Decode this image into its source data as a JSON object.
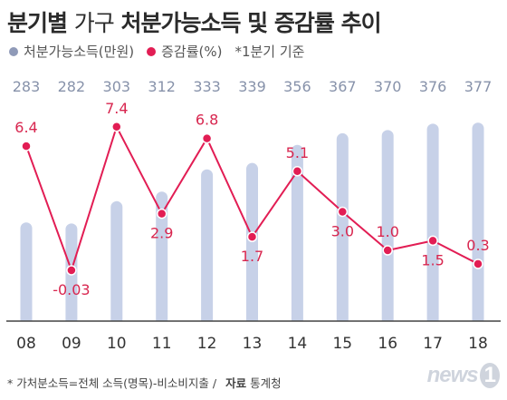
{
  "header": {
    "title_bold_1": "분기별",
    "title_light": "가구",
    "title_bold_2": "처분가능소득 및 증감률 추이"
  },
  "legend": {
    "bar_label": "처분가능소득(만원)",
    "line_label": "증감률(%)",
    "note": "*1분기 기준"
  },
  "footer": {
    "note": "* 가처분소득=전체 소득(명목)-비소비지출  /",
    "source_label": "자료",
    "source": "통계청"
  },
  "watermark": {
    "text": "news",
    "one": "1"
  },
  "colors": {
    "bar": "#c7d1e8",
    "bar_label": "#8792aa",
    "line": "#e21d54",
    "line_label": "#d8264f",
    "axis": "#444444",
    "legend_bar_dot": "#8f9ab8"
  },
  "chart_data": {
    "type": "bar+line",
    "categories": [
      "08",
      "09",
      "10",
      "11",
      "12",
      "13",
      "14",
      "15",
      "16",
      "17",
      "18"
    ],
    "series": [
      {
        "name": "처분가능소득(만원)",
        "type": "bar",
        "values": [
          283,
          282,
          303,
          312,
          333,
          339,
          356,
          367,
          370,
          376,
          377
        ]
      },
      {
        "name": "증감률(%)",
        "type": "line",
        "values": [
          6.4,
          -0.03,
          7.4,
          2.9,
          6.8,
          1.7,
          5.1,
          3.0,
          1.0,
          1.5,
          0.3
        ],
        "labels": [
          "6.4",
          "-0.03",
          "7.4",
          "2.9",
          "6.8",
          "1.7",
          "5.1",
          "3.0",
          "1.0",
          "1.5",
          "0.3"
        ]
      }
    ],
    "bar_ylim": [
      190,
      390
    ],
    "line_ylim": [
      -1.3,
      8.8
    ],
    "grid": false,
    "legend_position": "top-left"
  }
}
